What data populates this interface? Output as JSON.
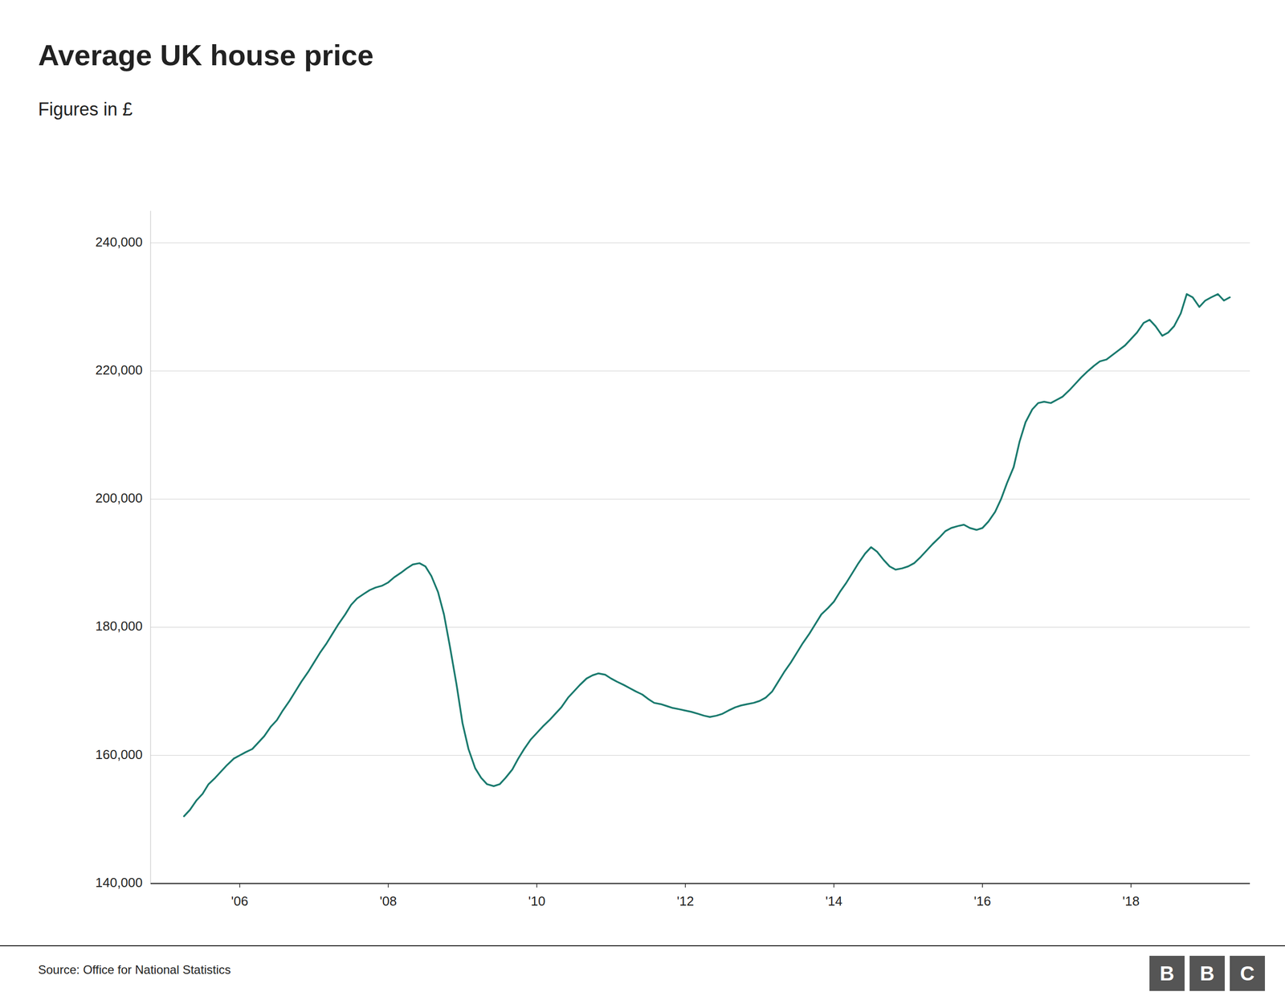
{
  "chart_data": {
    "type": "line",
    "title": "Average UK house price",
    "subtitle": "Figures in £",
    "source": "Source: Office for National Statistics",
    "logo": "BBC",
    "color": "#1a7a6e",
    "grid": "y",
    "xlim": [
      2004.8,
      2019.6
    ],
    "xticks": [
      {
        "value": 2006,
        "label": "'06"
      },
      {
        "value": 2008,
        "label": "'08"
      },
      {
        "value": 2010,
        "label": "'10"
      },
      {
        "value": 2012,
        "label": "'12"
      },
      {
        "value": 2014,
        "label": "'14"
      },
      {
        "value": 2016,
        "label": "'16"
      },
      {
        "value": 2018,
        "label": "'18"
      }
    ],
    "ylim": [
      140000,
      245000
    ],
    "yticks": [
      {
        "value": 140000,
        "label": "140,000"
      },
      {
        "value": 160000,
        "label": "160,000"
      },
      {
        "value": 180000,
        "label": "180,000"
      },
      {
        "value": 200000,
        "label": "200,000"
      },
      {
        "value": 220000,
        "label": "220,000"
      },
      {
        "value": 240000,
        "label": "240,000"
      }
    ],
    "x": [
      2005.25,
      2005.33,
      2005.42,
      2005.5,
      2005.58,
      2005.67,
      2005.75,
      2005.83,
      2005.92,
      2006.0,
      2006.08,
      2006.17,
      2006.25,
      2006.33,
      2006.42,
      2006.5,
      2006.58,
      2006.67,
      2006.75,
      2006.83,
      2006.92,
      2007.0,
      2007.08,
      2007.17,
      2007.25,
      2007.33,
      2007.42,
      2007.5,
      2007.58,
      2007.67,
      2007.75,
      2007.83,
      2007.92,
      2008.0,
      2008.08,
      2008.17,
      2008.25,
      2008.33,
      2008.42,
      2008.5,
      2008.58,
      2008.67,
      2008.75,
      2008.83,
      2008.92,
      2009.0,
      2009.08,
      2009.17,
      2009.25,
      2009.33,
      2009.42,
      2009.5,
      2009.58,
      2009.67,
      2009.75,
      2009.83,
      2009.92,
      2010.0,
      2010.08,
      2010.17,
      2010.25,
      2010.33,
      2010.42,
      2010.5,
      2010.58,
      2010.67,
      2010.75,
      2010.83,
      2010.92,
      2011.0,
      2011.08,
      2011.17,
      2011.25,
      2011.33,
      2011.42,
      2011.5,
      2011.58,
      2011.67,
      2011.75,
      2011.83,
      2011.92,
      2012.0,
      2012.08,
      2012.17,
      2012.25,
      2012.33,
      2012.42,
      2012.5,
      2012.58,
      2012.67,
      2012.75,
      2012.83,
      2012.92,
      2013.0,
      2013.08,
      2013.17,
      2013.25,
      2013.33,
      2013.42,
      2013.5,
      2013.58,
      2013.67,
      2013.75,
      2013.83,
      2013.92,
      2014.0,
      2014.08,
      2014.17,
      2014.25,
      2014.33,
      2014.42,
      2014.5,
      2014.58,
      2014.67,
      2014.75,
      2014.83,
      2014.92,
      2015.0,
      2015.08,
      2015.17,
      2015.25,
      2015.33,
      2015.42,
      2015.5,
      2015.58,
      2015.67,
      2015.75,
      2015.83,
      2015.92,
      2016.0,
      2016.08,
      2016.17,
      2016.25,
      2016.33,
      2016.42,
      2016.5,
      2016.58,
      2016.67,
      2016.75,
      2016.83,
      2016.92,
      2017.0,
      2017.08,
      2017.17,
      2017.25,
      2017.33,
      2017.42,
      2017.5,
      2017.58,
      2017.67,
      2017.75,
      2017.83,
      2017.92,
      2018.0,
      2018.08,
      2018.17,
      2018.25,
      2018.33,
      2018.42,
      2018.5,
      2018.58,
      2018.67,
      2018.75,
      2018.83,
      2018.92,
      2019.0,
      2019.08,
      2019.17,
      2019.25,
      2019.33
    ],
    "values": [
      150500,
      151500,
      153000,
      154000,
      155500,
      156500,
      157500,
      158500,
      159500,
      160000,
      160500,
      161000,
      162000,
      163000,
      164500,
      165500,
      167000,
      168500,
      170000,
      171500,
      173000,
      174500,
      176000,
      177500,
      179000,
      180500,
      182000,
      183500,
      184500,
      185200,
      185800,
      186200,
      186500,
      187000,
      187800,
      188500,
      189200,
      189800,
      190000,
      189500,
      188000,
      185500,
      182000,
      177000,
      171000,
      165000,
      161000,
      158000,
      156500,
      155500,
      155200,
      155500,
      156500,
      157800,
      159500,
      161000,
      162500,
      163500,
      164500,
      165500,
      166500,
      167500,
      169000,
      170000,
      171000,
      172000,
      172500,
      172800,
      172600,
      172000,
      171500,
      171000,
      170500,
      170000,
      169500,
      168800,
      168200,
      168000,
      167700,
      167400,
      167200,
      167000,
      166800,
      166500,
      166200,
      166000,
      166200,
      166500,
      167000,
      167500,
      167800,
      168000,
      168200,
      168500,
      169000,
      170000,
      171500,
      173000,
      174500,
      176000,
      177500,
      179000,
      180500,
      182000,
      183000,
      184000,
      185500,
      187000,
      188500,
      190000,
      191500,
      192500,
      191800,
      190500,
      189500,
      189000,
      189200,
      189500,
      190000,
      191000,
      192000,
      193000,
      194000,
      195000,
      195500,
      195800,
      196000,
      195500,
      195200,
      195500,
      196500,
      198000,
      200000,
      202500,
      205000,
      209000,
      212000,
      214000,
      215000,
      215200,
      215000,
      215500,
      216000,
      217000,
      218000,
      219000,
      220000,
      220800,
      221500,
      221800,
      222500,
      223200,
      224000,
      225000,
      226000,
      227500,
      228000,
      227000,
      225500,
      226000,
      227000,
      229000,
      232000,
      231500,
      230000,
      231000,
      231500,
      232000,
      231000,
      231500
    ]
  }
}
